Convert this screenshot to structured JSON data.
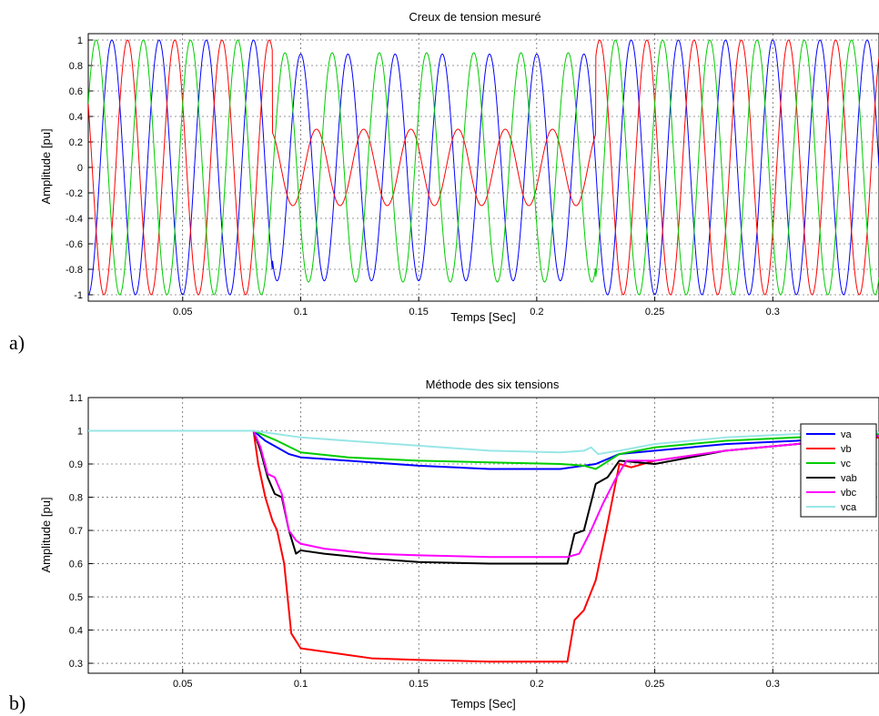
{
  "chart_data": [
    {
      "type": "line",
      "panel_letter": "a)",
      "title": "Creux de tension mesuré",
      "xlabel": "Temps [Sec]",
      "ylabel": "Amplitude [pu]",
      "xlim": [
        0.01,
        0.345
      ],
      "ylim": [
        -1.05,
        1.05
      ],
      "xticks": [
        "0.05",
        "0.1",
        "0.15",
        "0.2",
        "0.25",
        "0.3"
      ],
      "yticks": [
        "-1",
        "-0.8",
        "-0.6",
        "-0.4",
        "-0.2",
        "0",
        "0.2",
        "0.4",
        "0.6",
        "0.8",
        "1"
      ],
      "grid": true,
      "frequency_hz": 50,
      "sag_interval": [
        0.088,
        0.225
      ],
      "series": [
        {
          "color": "#0000ff",
          "amplitude_pre": 1.0,
          "amplitude_sag": 0.89,
          "phase_deg": 0
        },
        {
          "color": "#ff0000",
          "amplitude_pre": 1.0,
          "amplitude_sag": 0.3,
          "phase_deg": -120
        },
        {
          "color": "#00cc00",
          "amplitude_pre": 1.0,
          "amplitude_sag": 0.9,
          "phase_deg": 120
        }
      ]
    },
    {
      "type": "line",
      "panel_letter": "b)",
      "title": "Méthode des six tensions",
      "xlabel": "Temps [Sec]",
      "ylabel": "Amplitude [pu]",
      "xlim": [
        0.01,
        0.345
      ],
      "ylim": [
        0.27,
        1.1
      ],
      "xticks": [
        "0.05",
        "0.1",
        "0.15",
        "0.2",
        "0.25",
        "0.3"
      ],
      "yticks": [
        "0.3",
        "0.4",
        "0.5",
        "0.6",
        "0.7",
        "0.8",
        "0.9",
        "1",
        "1.1"
      ],
      "grid": true,
      "legend_position": "top-right",
      "series": [
        {
          "name": "va",
          "color": "#0000ff",
          "x": [
            0.01,
            0.08,
            0.085,
            0.09,
            0.095,
            0.1,
            0.11,
            0.13,
            0.15,
            0.18,
            0.21,
            0.22,
            0.225,
            0.235,
            0.25,
            0.28,
            0.31,
            0.345
          ],
          "y": [
            1.0,
            1.0,
            0.97,
            0.95,
            0.93,
            0.92,
            0.915,
            0.905,
            0.895,
            0.885,
            0.885,
            0.895,
            0.9,
            0.93,
            0.94,
            0.96,
            0.97,
            0.99
          ]
        },
        {
          "name": "vb",
          "color": "#ff0000",
          "x": [
            0.01,
            0.08,
            0.082,
            0.085,
            0.088,
            0.09,
            0.093,
            0.096,
            0.1,
            0.11,
            0.13,
            0.15,
            0.18,
            0.213,
            0.216,
            0.22,
            0.225,
            0.23,
            0.235,
            0.24,
            0.25,
            0.28,
            0.31,
            0.345
          ],
          "y": [
            1.0,
            1.0,
            0.9,
            0.8,
            0.73,
            0.7,
            0.6,
            0.39,
            0.345,
            0.335,
            0.315,
            0.31,
            0.305,
            0.305,
            0.43,
            0.46,
            0.55,
            0.72,
            0.9,
            0.89,
            0.91,
            0.94,
            0.96,
            0.98
          ]
        },
        {
          "name": "vc",
          "color": "#00cc00",
          "x": [
            0.01,
            0.08,
            0.09,
            0.1,
            0.12,
            0.15,
            0.18,
            0.21,
            0.22,
            0.225,
            0.235,
            0.25,
            0.28,
            0.31,
            0.345
          ],
          "y": [
            1.0,
            1.0,
            0.97,
            0.935,
            0.92,
            0.91,
            0.905,
            0.9,
            0.895,
            0.885,
            0.93,
            0.95,
            0.97,
            0.98,
            0.99
          ]
        },
        {
          "name": "vab",
          "color": "#000000",
          "x": [
            0.01,
            0.08,
            0.083,
            0.086,
            0.089,
            0.092,
            0.095,
            0.098,
            0.1,
            0.11,
            0.13,
            0.15,
            0.18,
            0.21,
            0.213,
            0.216,
            0.22,
            0.225,
            0.23,
            0.235,
            0.25,
            0.28,
            0.31,
            0.345
          ],
          "y": [
            1.0,
            1.0,
            0.94,
            0.86,
            0.81,
            0.8,
            0.7,
            0.63,
            0.64,
            0.63,
            0.615,
            0.605,
            0.6,
            0.6,
            0.6,
            0.69,
            0.7,
            0.84,
            0.86,
            0.91,
            0.9,
            0.94,
            0.96,
            0.985
          ]
        },
        {
          "name": "vbc",
          "color": "#ff00ff",
          "x": [
            0.01,
            0.08,
            0.083,
            0.086,
            0.089,
            0.092,
            0.095,
            0.098,
            0.1,
            0.11,
            0.13,
            0.15,
            0.18,
            0.21,
            0.213,
            0.218,
            0.223,
            0.228,
            0.233,
            0.238,
            0.25,
            0.28,
            0.31,
            0.345
          ],
          "y": [
            1.0,
            1.0,
            0.95,
            0.87,
            0.86,
            0.81,
            0.7,
            0.67,
            0.66,
            0.645,
            0.63,
            0.625,
            0.62,
            0.62,
            0.62,
            0.63,
            0.7,
            0.78,
            0.85,
            0.91,
            0.91,
            0.94,
            0.96,
            0.985
          ]
        },
        {
          "name": "vca",
          "color": "#99e6e6",
          "x": [
            0.01,
            0.08,
            0.09,
            0.1,
            0.12,
            0.15,
            0.18,
            0.21,
            0.22,
            0.223,
            0.226,
            0.235,
            0.25,
            0.28,
            0.31,
            0.345
          ],
          "y": [
            1.0,
            1.0,
            0.99,
            0.98,
            0.97,
            0.955,
            0.94,
            0.935,
            0.94,
            0.95,
            0.93,
            0.94,
            0.96,
            0.98,
            0.99,
            0.995
          ]
        }
      ]
    }
  ]
}
